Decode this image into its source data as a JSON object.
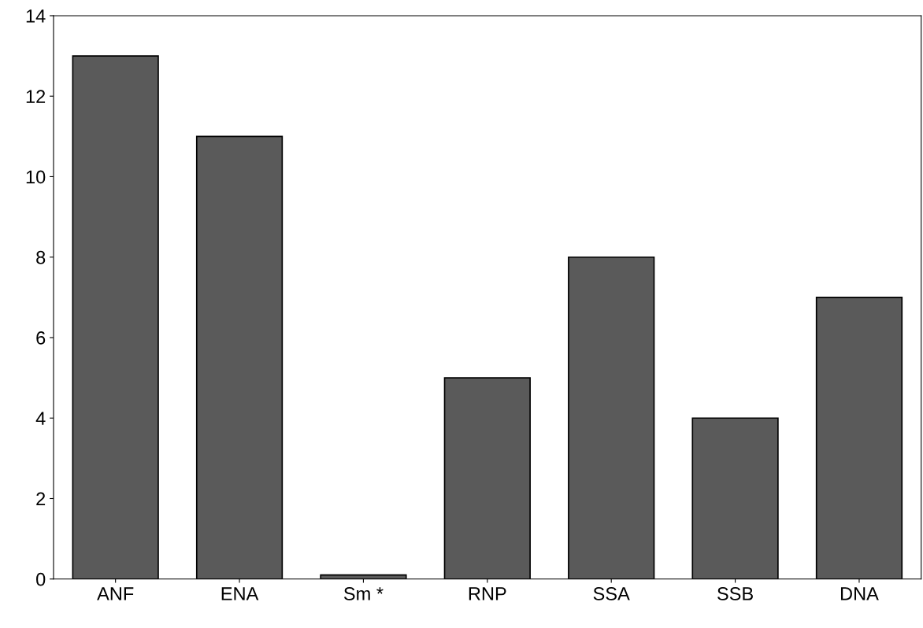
{
  "chart_data": {
    "type": "bar",
    "categories": [
      "ANF",
      "ENA",
      "Sm *",
      "RNP",
      "SSA",
      "SSB",
      "DNA"
    ],
    "values": [
      13,
      11,
      0.1,
      5,
      8,
      4,
      7
    ],
    "color": "#5a5a5a",
    "ylim": [
      0,
      14
    ],
    "yticks": [
      0,
      2,
      4,
      6,
      8,
      10,
      12,
      14
    ],
    "grid": false,
    "legend": false
  }
}
